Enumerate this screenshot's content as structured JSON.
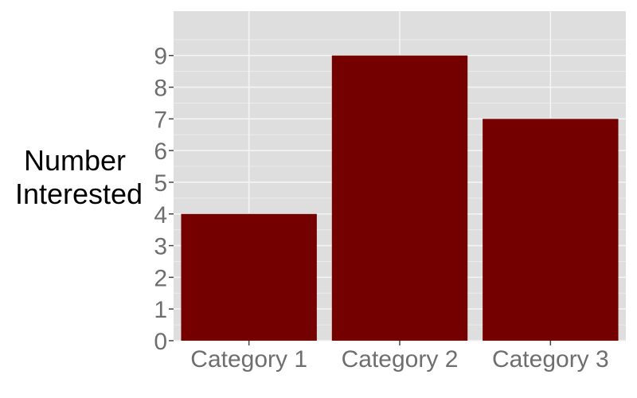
{
  "chart_data": {
    "type": "bar",
    "categories": [
      "Category 1",
      "Category 2",
      "Category 3"
    ],
    "values": [
      4,
      9,
      7
    ],
    "ylabel_lines": [
      "Number",
      "Interested"
    ],
    "xlabel": "",
    "ylim": [
      0,
      10.4
    ],
    "y_ticks": [
      0,
      1,
      2,
      3,
      4,
      5,
      6,
      7,
      8,
      9
    ],
    "grid": true,
    "colors": {
      "bar": "#750000",
      "panel": "#dedede",
      "grid_major": "#f4f4f4",
      "grid_minor": "#ebebeb",
      "tick_text": "#6e6e6e",
      "axis_title": "#000000"
    }
  }
}
